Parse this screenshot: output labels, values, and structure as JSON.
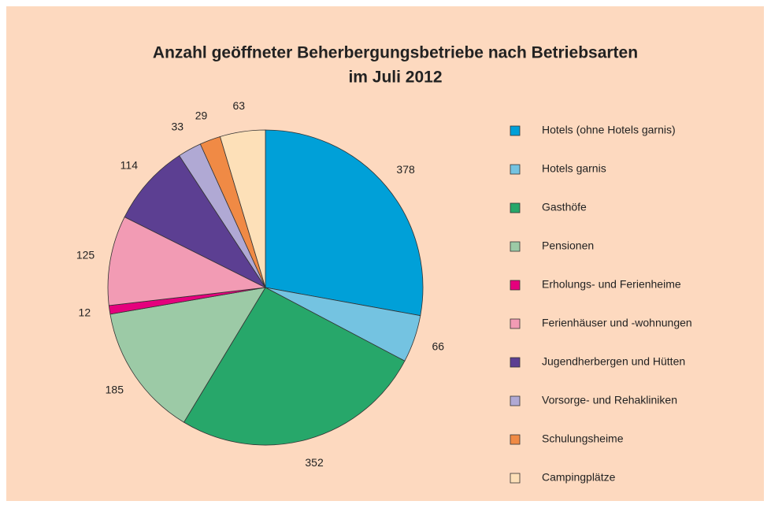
{
  "chart_data": {
    "type": "pie",
    "title": [
      "Anzahl geöffneter Beherbergungsbetriebe nach Betriebsarten",
      "im Juli 2012"
    ],
    "categories": [
      "Hotels (ohne Hotels garnis)",
      "Hotels garnis",
      "Gasthöfe",
      "Pensionen",
      "Erholungs- und Ferienheime",
      "Ferienhäuser und -wohnungen",
      "Jugendherbergen und Hütten",
      "Vorsorge- und Rehakliniken",
      "Schulungsheime",
      "Campingplätze"
    ],
    "values": [
      378,
      66,
      352,
      185,
      12,
      125,
      114,
      33,
      29,
      63
    ],
    "colors": [
      "#00a0d8",
      "#74c3e1",
      "#27a76a",
      "#9ccaa6",
      "#e5007d",
      "#f29bb4",
      "#5c3f92",
      "#b0a9d4",
      "#f08a45",
      "#fde0b8"
    ],
    "legend": "right"
  }
}
